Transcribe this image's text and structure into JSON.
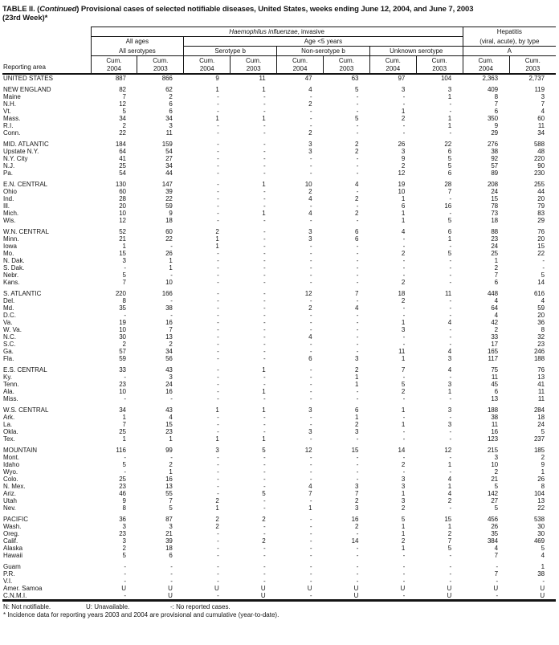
{
  "title": {
    "prefix": "TABLE II. (",
    "continued": "Continued",
    "rest": ") Provisional cases of selected notifiable diseases, United States, weeks ending June 12, 2004, and June 7, 2003",
    "line2": "(23rd Week)*"
  },
  "header": {
    "reporting_area": "Reporting area",
    "hi_italic": "Haemophilus influenzae",
    "hi_rest": ", invasive",
    "hep_line1": "Hepatitis",
    "hep_line2": "(viral, acute), by type",
    "all_ages": "All ages",
    "age_under5": "Age <5 years",
    "groups": [
      "All serotypes",
      "Serotype b",
      "Non-serotype b",
      "Unknown serotype",
      "A"
    ],
    "cum_label": "Cum.",
    "years": [
      "2004",
      "2003"
    ]
  },
  "table": {
    "column_keys": [
      "reporting_area",
      "hi_allages_allserotypes_cum2004",
      "hi_allages_allserotypes_cum2003",
      "hi_under5_serotype_b_cum2004",
      "hi_under5_serotype_b_cum2003",
      "hi_under5_non_serotype_b_cum2004",
      "hi_under5_non_serotype_b_cum2003",
      "hi_under5_unknown_serotype_cum2004",
      "hi_under5_unknown_serotype_cum2003",
      "hepatitis_a_cum2004",
      "hepatitis_a_cum2003"
    ],
    "sections": [
      {
        "rows": [
          [
            "UNITED STATES",
            "887",
            "866",
            "9",
            "11",
            "47",
            "63",
            "97",
            "104",
            "2,363",
            "2,737"
          ]
        ]
      },
      {
        "rows": [
          [
            "NEW ENGLAND",
            "82",
            "62",
            "1",
            "1",
            "4",
            "5",
            "3",
            "3",
            "409",
            "119"
          ],
          [
            "Maine",
            "7",
            "2",
            "-",
            "-",
            "-",
            "-",
            "-",
            "1",
            "8",
            "3"
          ],
          [
            "N.H.",
            "12",
            "6",
            "-",
            "-",
            "2",
            "-",
            "-",
            "-",
            "7",
            "7"
          ],
          [
            "Vt.",
            "5",
            "6",
            "-",
            "-",
            "-",
            "-",
            "1",
            "-",
            "6",
            "4"
          ],
          [
            "Mass.",
            "34",
            "34",
            "1",
            "1",
            "-",
            "5",
            "2",
            "1",
            "350",
            "60"
          ],
          [
            "R.I.",
            "2",
            "3",
            "-",
            "-",
            "-",
            "-",
            "-",
            "1",
            "9",
            "11"
          ],
          [
            "Conn.",
            "22",
            "11",
            "-",
            "-",
            "2",
            "-",
            "-",
            "-",
            "29",
            "34"
          ]
        ]
      },
      {
        "rows": [
          [
            "MID. ATLANTIC",
            "184",
            "159",
            "-",
            "-",
            "3",
            "2",
            "26",
            "22",
            "276",
            "588"
          ],
          [
            "Upstate N.Y.",
            "64",
            "54",
            "-",
            "-",
            "3",
            "2",
            "3",
            "6",
            "38",
            "48"
          ],
          [
            "N.Y. City",
            "41",
            "27",
            "-",
            "-",
            "-",
            "-",
            "9",
            "5",
            "92",
            "220"
          ],
          [
            "N.J.",
            "25",
            "34",
            "-",
            "-",
            "-",
            "-",
            "2",
            "5",
            "57",
            "90"
          ],
          [
            "Pa.",
            "54",
            "44",
            "-",
            "-",
            "-",
            "-",
            "12",
            "6",
            "89",
            "230"
          ]
        ]
      },
      {
        "rows": [
          [
            "E.N. CENTRAL",
            "130",
            "147",
            "-",
            "1",
            "10",
            "4",
            "19",
            "28",
            "208",
            "255"
          ],
          [
            "Ohio",
            "60",
            "39",
            "-",
            "-",
            "2",
            "-",
            "10",
            "7",
            "24",
            "44"
          ],
          [
            "Ind.",
            "28",
            "22",
            "-",
            "-",
            "4",
            "2",
            "1",
            "-",
            "15",
            "20"
          ],
          [
            "Ill.",
            "20",
            "59",
            "-",
            "-",
            "-",
            "-",
            "6",
            "16",
            "78",
            "79"
          ],
          [
            "Mich.",
            "10",
            "9",
            "-",
            "1",
            "4",
            "2",
            "1",
            "-",
            "73",
            "83"
          ],
          [
            "Wis.",
            "12",
            "18",
            "-",
            "-",
            "-",
            "-",
            "1",
            "5",
            "18",
            "29"
          ]
        ]
      },
      {
        "rows": [
          [
            "W.N. CENTRAL",
            "52",
            "60",
            "2",
            "-",
            "3",
            "6",
            "4",
            "6",
            "88",
            "76"
          ],
          [
            "Minn.",
            "21",
            "22",
            "1",
            "-",
            "3",
            "6",
            "-",
            "1",
            "23",
            "20"
          ],
          [
            "Iowa",
            "1",
            "-",
            "1",
            "-",
            "-",
            "-",
            "-",
            "-",
            "24",
            "15"
          ],
          [
            "Mo.",
            "15",
            "26",
            "-",
            "-",
            "-",
            "-",
            "2",
            "5",
            "25",
            "22"
          ],
          [
            "N. Dak.",
            "3",
            "1",
            "-",
            "-",
            "-",
            "-",
            "-",
            "-",
            "1",
            "-"
          ],
          [
            "S. Dak.",
            "-",
            "1",
            "-",
            "-",
            "-",
            "-",
            "-",
            "-",
            "2",
            "-"
          ],
          [
            "Nebr.",
            "5",
            "-",
            "-",
            "-",
            "-",
            "-",
            "-",
            "-",
            "7",
            "5"
          ],
          [
            "Kans.",
            "7",
            "10",
            "-",
            "-",
            "-",
            "-",
            "2",
            "-",
            "6",
            "14"
          ]
        ]
      },
      {
        "rows": [
          [
            "S. ATLANTIC",
            "220",
            "166",
            "-",
            "-",
            "12",
            "7",
            "18",
            "11",
            "448",
            "616"
          ],
          [
            "Del.",
            "8",
            "-",
            "-",
            "-",
            "-",
            "-",
            "2",
            "-",
            "4",
            "4"
          ],
          [
            "Md.",
            "35",
            "38",
            "-",
            "-",
            "2",
            "4",
            "-",
            "-",
            "64",
            "59"
          ],
          [
            "D.C.",
            "-",
            "-",
            "-",
            "-",
            "-",
            "-",
            "-",
            "-",
            "4",
            "20"
          ],
          [
            "Va.",
            "19",
            "16",
            "-",
            "-",
            "-",
            "-",
            "1",
            "4",
            "42",
            "36"
          ],
          [
            "W. Va.",
            "10",
            "7",
            "-",
            "-",
            "-",
            "-",
            "3",
            "-",
            "2",
            "8"
          ],
          [
            "N.C.",
            "30",
            "13",
            "-",
            "-",
            "4",
            "-",
            "-",
            "-",
            "33",
            "32"
          ],
          [
            "S.C.",
            "2",
            "2",
            "-",
            "-",
            "-",
            "-",
            "-",
            "-",
            "17",
            "23"
          ],
          [
            "Ga.",
            "57",
            "34",
            "-",
            "-",
            "-",
            "-",
            "11",
            "4",
            "165",
            "246"
          ],
          [
            "Fla.",
            "59",
            "56",
            "-",
            "-",
            "6",
            "3",
            "1",
            "3",
            "117",
            "188"
          ]
        ]
      },
      {
        "rows": [
          [
            "E.S. CENTRAL",
            "33",
            "43",
            "-",
            "1",
            "-",
            "2",
            "7",
            "4",
            "75",
            "76"
          ],
          [
            "Ky.",
            "-",
            "3",
            "-",
            "-",
            "-",
            "1",
            "-",
            "-",
            "11",
            "13"
          ],
          [
            "Tenn.",
            "23",
            "24",
            "-",
            "-",
            "-",
            "1",
            "5",
            "3",
            "45",
            "41"
          ],
          [
            "Ala.",
            "10",
            "16",
            "-",
            "1",
            "-",
            "-",
            "2",
            "1",
            "6",
            "11"
          ],
          [
            "Miss.",
            "-",
            "-",
            "-",
            "-",
            "-",
            "-",
            "-",
            "-",
            "13",
            "11"
          ]
        ]
      },
      {
        "rows": [
          [
            "W.S. CENTRAL",
            "34",
            "43",
            "1",
            "1",
            "3",
            "6",
            "1",
            "3",
            "188",
            "284"
          ],
          [
            "Ark.",
            "1",
            "4",
            "-",
            "-",
            "-",
            "1",
            "-",
            "-",
            "38",
            "18"
          ],
          [
            "La.",
            "7",
            "15",
            "-",
            "-",
            "-",
            "2",
            "1",
            "3",
            "11",
            "24"
          ],
          [
            "Okla.",
            "25",
            "23",
            "-",
            "-",
            "3",
            "3",
            "-",
            "-",
            "16",
            "5"
          ],
          [
            "Tex.",
            "1",
            "1",
            "1",
            "1",
            "-",
            "-",
            "-",
            "-",
            "123",
            "237"
          ]
        ]
      },
      {
        "rows": [
          [
            "MOUNTAIN",
            "116",
            "99",
            "3",
            "5",
            "12",
            "15",
            "14",
            "12",
            "215",
            "185"
          ],
          [
            "Mont.",
            "-",
            "-",
            "-",
            "-",
            "-",
            "-",
            "-",
            "-",
            "3",
            "2"
          ],
          [
            "Idaho",
            "5",
            "2",
            "-",
            "-",
            "-",
            "-",
            "2",
            "1",
            "10",
            "9"
          ],
          [
            "Wyo.",
            "-",
            "1",
            "-",
            "-",
            "-",
            "-",
            "-",
            "-",
            "2",
            "1"
          ],
          [
            "Colo.",
            "25",
            "16",
            "-",
            "-",
            "-",
            "-",
            "3",
            "4",
            "21",
            "26"
          ],
          [
            "N. Mex.",
            "23",
            "13",
            "-",
            "-",
            "4",
            "3",
            "3",
            "1",
            "5",
            "8"
          ],
          [
            "Ariz.",
            "46",
            "55",
            "-",
            "5",
            "7",
            "7",
            "1",
            "4",
            "142",
            "104"
          ],
          [
            "Utah",
            "9",
            "7",
            "2",
            "-",
            "-",
            "2",
            "3",
            "2",
            "27",
            "13"
          ],
          [
            "Nev.",
            "8",
            "5",
            "1",
            "-",
            "1",
            "3",
            "2",
            "-",
            "5",
            "22"
          ]
        ]
      },
      {
        "rows": [
          [
            "PACIFIC",
            "36",
            "87",
            "2",
            "2",
            "-",
            "16",
            "5",
            "15",
            "456",
            "538"
          ],
          [
            "Wash.",
            "3",
            "3",
            "2",
            "-",
            "-",
            "2",
            "1",
            "1",
            "26",
            "30"
          ],
          [
            "Oreg.",
            "23",
            "21",
            "-",
            "-",
            "-",
            "-",
            "1",
            "2",
            "35",
            "30"
          ],
          [
            "Calif.",
            "3",
            "39",
            "-",
            "2",
            "-",
            "14",
            "2",
            "7",
            "384",
            "469"
          ],
          [
            "Alaska",
            "2",
            "18",
            "-",
            "-",
            "-",
            "-",
            "1",
            "5",
            "4",
            "5"
          ],
          [
            "Hawaii",
            "5",
            "6",
            "-",
            "-",
            "-",
            "-",
            "-",
            "-",
            "7",
            "4"
          ]
        ]
      },
      {
        "rows": [
          [
            "Guam",
            "-",
            "-",
            "-",
            "-",
            "-",
            "-",
            "-",
            "-",
            "-",
            "1"
          ],
          [
            "P.R.",
            "-",
            "-",
            "-",
            "-",
            "-",
            "-",
            "-",
            "-",
            "7",
            "38"
          ],
          [
            "V.I.",
            "-",
            "-",
            "-",
            "-",
            "-",
            "-",
            "-",
            "-",
            "-",
            "-"
          ],
          [
            "Amer. Samoa",
            "U",
            "U",
            "U",
            "U",
            "U",
            "U",
            "U",
            "U",
            "U",
            "U"
          ],
          [
            "C.N.M.I.",
            "-",
            "U",
            "-",
            "U",
            "-",
            "U",
            "-",
            "U",
            "-",
            "U"
          ]
        ]
      }
    ]
  },
  "footnotes": {
    "legend": [
      "N: Not notifiable.",
      "U: Unavailable.",
      "-: No reported cases."
    ],
    "note": "* Incidence data for reporting years 2003 and 2004 are provisional and cumulative (year-to-date)."
  }
}
